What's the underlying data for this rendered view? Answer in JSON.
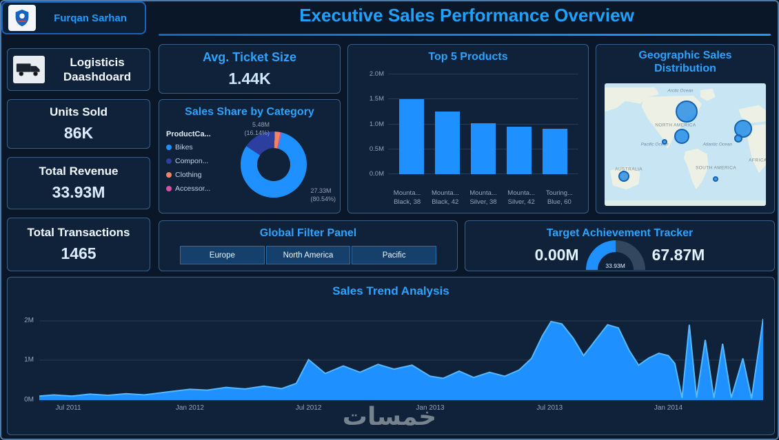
{
  "theme": {
    "accent": "#1E9BFF",
    "page_bg": "#0A1729",
    "panel_bg": "#10223A",
    "title_color": "#1EA2FF"
  },
  "header": {
    "user_name": "Furqan Sarhan",
    "title": "Executive Sales Performance Overview"
  },
  "kpis": {
    "brand": {
      "line1": "Logisticis",
      "line2": "Daashdoard"
    },
    "units_sold": {
      "label": "Units Sold",
      "value": "86K"
    },
    "total_revenue": {
      "label": "Total Revenue",
      "value": "33.93M"
    },
    "total_transactions": {
      "label": "Total Transactions",
      "value": "1465"
    },
    "avg_ticket": {
      "label": "Avg. Ticket Size",
      "value": "1.44K"
    }
  },
  "filter_panel": {
    "title": "Global Filter Panel",
    "buttons": [
      "Europe",
      "North America",
      "Pacific"
    ]
  },
  "watermark": {
    "text": "خمسات"
  },
  "chart_data": [
    {
      "id": "sales_share_by_category",
      "type": "pie",
      "title": "Sales Share by Category",
      "legend_title": "ProductCa...",
      "legend_position": "left",
      "start_deg": 14,
      "slices": [
        {
          "label": "Bikes",
          "pct": 80.54,
          "value": "27.33M",
          "color": "#1E90FF"
        },
        {
          "label": "Compon...",
          "pct": 16.14,
          "value": "5.48M",
          "color": "#2D3F9E"
        },
        {
          "label": "Clothing",
          "pct": 2.6,
          "value": "",
          "color": "#F4845F"
        },
        {
          "label": "Accessor...",
          "pct": 0.72,
          "value": "",
          "color": "#D94FA4"
        }
      ],
      "callouts": [
        {
          "value": "5.48M",
          "pct": "(16.14%)"
        },
        {
          "value": "27.33M",
          "pct": "(80.54%)"
        }
      ]
    },
    {
      "id": "top_5_products",
      "type": "bar",
      "title": "Top 5 Products",
      "categories": [
        [
          "Mounta...",
          "Black, 38"
        ],
        [
          "Mounta...",
          "Black, 42"
        ],
        [
          "Mounta...",
          "Silver, 38"
        ],
        [
          "Mounta...",
          "Silver, 42"
        ],
        [
          "Touring...",
          "Blue, 60"
        ]
      ],
      "values_m": [
        1.5,
        1.24,
        1.02,
        0.94,
        0.9
      ],
      "unit": "M",
      "ylim": [
        0,
        2
      ],
      "yticks": [
        "0.0M",
        "0.5M",
        "1.0M",
        "1.5M",
        "2.0M"
      ],
      "grid": true,
      "bar_color": "#1E90FF"
    },
    {
      "id": "target_achievement",
      "type": "gauge",
      "title": "Target Achievement Tracker",
      "min": 0,
      "max": 67.87,
      "value": 33.93,
      "min_label": "0.00M",
      "max_label": "67.87M",
      "value_label": "33.93M",
      "fill_color": "#1E90FF",
      "track_color": "#33475F"
    },
    {
      "id": "sales_trend",
      "type": "area",
      "title": "Sales Trend Analysis",
      "ylim": [
        0,
        2.31
      ],
      "yticks": [
        {
          "v": 0,
          "label": "0M"
        },
        {
          "v": 1,
          "label": "1M"
        },
        {
          "v": 2,
          "label": "2M"
        }
      ],
      "xticks": [
        {
          "x": 0.04,
          "label": "Jul 2011"
        },
        {
          "x": 0.208,
          "label": "Jan 2012"
        },
        {
          "x": 0.372,
          "label": "Jul 2012"
        },
        {
          "x": 0.54,
          "label": "Jan 2013"
        },
        {
          "x": 0.705,
          "label": "Jul 2013"
        },
        {
          "x": 0.869,
          "label": "Jan 2014"
        }
      ],
      "points": [
        [
          0.0,
          0.1
        ],
        [
          0.02,
          0.13
        ],
        [
          0.045,
          0.1
        ],
        [
          0.07,
          0.15
        ],
        [
          0.095,
          0.12
        ],
        [
          0.12,
          0.16
        ],
        [
          0.145,
          0.13
        ],
        [
          0.175,
          0.2
        ],
        [
          0.208,
          0.27
        ],
        [
          0.232,
          0.25
        ],
        [
          0.258,
          0.32
        ],
        [
          0.284,
          0.28
        ],
        [
          0.31,
          0.35
        ],
        [
          0.335,
          0.29
        ],
        [
          0.355,
          0.42
        ],
        [
          0.372,
          1.02
        ],
        [
          0.395,
          0.67
        ],
        [
          0.42,
          0.86
        ],
        [
          0.443,
          0.7
        ],
        [
          0.468,
          0.9
        ],
        [
          0.49,
          0.78
        ],
        [
          0.515,
          0.88
        ],
        [
          0.54,
          0.6
        ],
        [
          0.558,
          0.55
        ],
        [
          0.58,
          0.73
        ],
        [
          0.6,
          0.57
        ],
        [
          0.622,
          0.7
        ],
        [
          0.643,
          0.6
        ],
        [
          0.663,
          0.76
        ],
        [
          0.68,
          1.05
        ],
        [
          0.695,
          1.62
        ],
        [
          0.707,
          1.98
        ],
        [
          0.722,
          1.92
        ],
        [
          0.738,
          1.55
        ],
        [
          0.752,
          1.12
        ],
        [
          0.768,
          1.5
        ],
        [
          0.785,
          1.9
        ],
        [
          0.8,
          1.82
        ],
        [
          0.815,
          1.25
        ],
        [
          0.828,
          0.88
        ],
        [
          0.842,
          1.06
        ],
        [
          0.856,
          1.18
        ],
        [
          0.869,
          1.12
        ],
        [
          0.878,
          0.92
        ],
        [
          0.888,
          0.05
        ],
        [
          0.898,
          1.9
        ],
        [
          0.908,
          0.06
        ],
        [
          0.92,
          1.52
        ],
        [
          0.932,
          0.05
        ],
        [
          0.944,
          1.42
        ],
        [
          0.956,
          0.06
        ],
        [
          0.972,
          1.05
        ],
        [
          0.984,
          0.04
        ],
        [
          1.0,
          2.05
        ]
      ],
      "fill_color": "#1E90FF",
      "line_color": "#55B9FF"
    },
    {
      "id": "geographic_sales",
      "type": "scatter",
      "title_lines": [
        "Geographic Sales",
        "Distribution"
      ],
      "bubble_color": "#1E88E5",
      "bubbles": [
        {
          "x": 51,
          "y": 23,
          "r": 16
        },
        {
          "x": 48,
          "y": 43,
          "r": 11
        },
        {
          "x": 37,
          "y": 48,
          "r": 4
        },
        {
          "x": 86,
          "y": 37,
          "r": 13
        },
        {
          "x": 83,
          "y": 45,
          "r": 6
        },
        {
          "x": 12,
          "y": 76,
          "r": 8
        },
        {
          "x": 69,
          "y": 78,
          "r": 4
        }
      ],
      "map_labels": [
        {
          "text": "Arctic Ocean",
          "x": 47,
          "y": 6,
          "kind": "ocean"
        },
        {
          "text": "NORTH AMERICA",
          "x": 44,
          "y": 34,
          "kind": "continent"
        },
        {
          "text": "Pacific Ocean",
          "x": 31,
          "y": 50,
          "kind": "ocean"
        },
        {
          "text": "Atlantic Ocean",
          "x": 70,
          "y": 50,
          "kind": "ocean"
        },
        {
          "text": "AFRICA",
          "x": 95,
          "y": 63,
          "kind": "continent"
        },
        {
          "text": "AUSTRALIA",
          "x": 15,
          "y": 70,
          "kind": "continent"
        },
        {
          "text": "SOUTH AMERICA",
          "x": 69,
          "y": 69,
          "kind": "continent"
        }
      ]
    }
  ]
}
